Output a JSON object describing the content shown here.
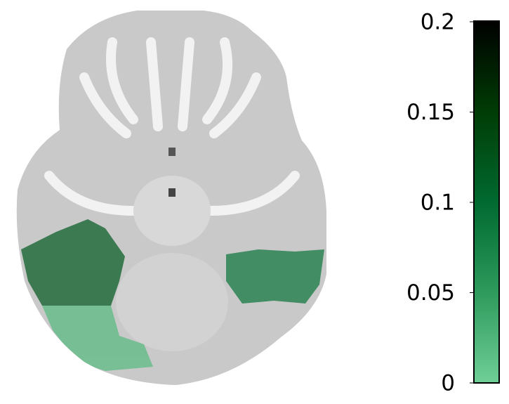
{
  "chart_data": {
    "type": "brain-map",
    "values": [
      0.02,
      0.12,
      0.09
    ],
    "colormap": [
      "#6fcf97",
      "#2e9a5c",
      "#006a30",
      "#003c05",
      "#000000"
    ],
    "clim": [
      0,
      0.2
    ],
    "cticks": [
      0,
      0.05,
      0.1,
      0.15,
      0.2
    ]
  }
}
